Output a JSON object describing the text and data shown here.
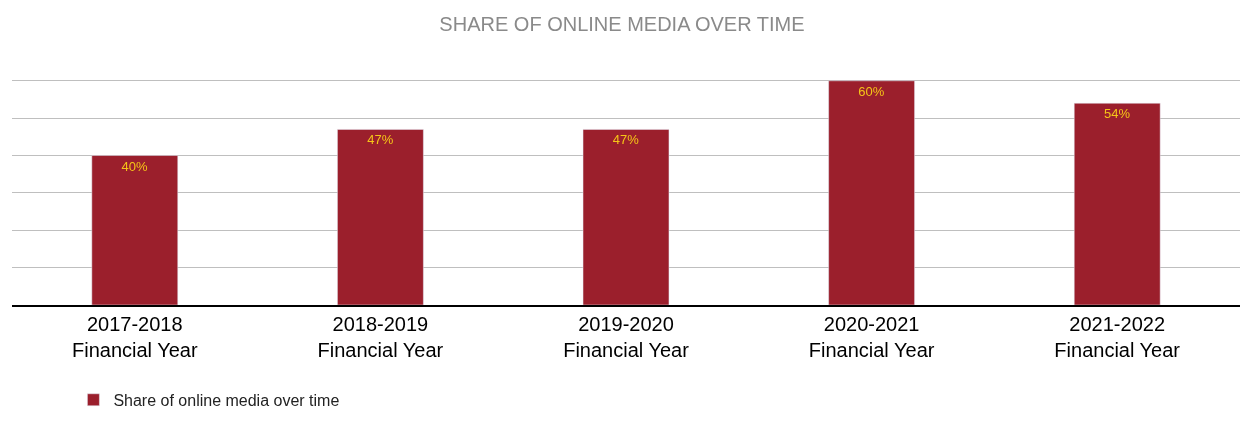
{
  "chart_data": {
    "type": "bar",
    "title": "SHARE OF ONLINE MEDIA OVER TIME",
    "categories": [
      "2017-2018\nFinancial Year",
      "2018-2019\nFinancial Year",
      "2019-2020\nFinancial Year",
      "2020-2021\nFinancial Year",
      "2021-2022\nFinancial Year"
    ],
    "series": [
      {
        "name": "Share of online media over time",
        "color": "#9b1f2c",
        "values": [
          40,
          47,
          47,
          60,
          54
        ],
        "value_labels": [
          "40%",
          "47%",
          "47%",
          "60%",
          "54%"
        ]
      }
    ],
    "grid": "y",
    "legend": "bottom left",
    "tick_labels": "x"
  }
}
